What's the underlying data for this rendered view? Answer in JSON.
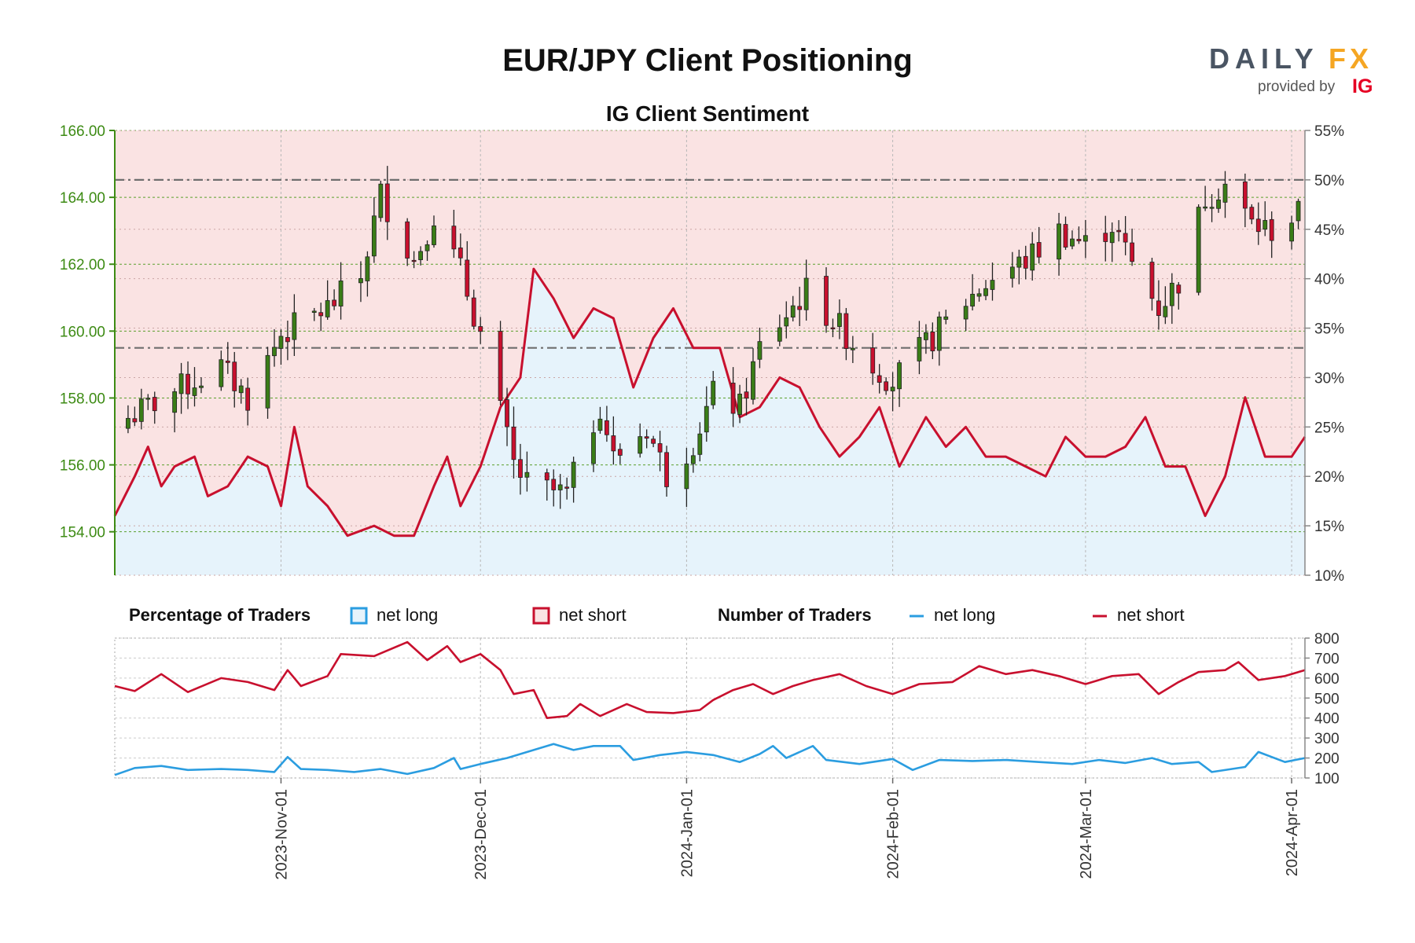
{
  "header": {
    "title": "EUR/JPY Client Positioning",
    "subtitle": "IG Client Sentiment"
  },
  "logo": {
    "brand_a": "DAILY",
    "brand_b": "FX",
    "provided_by": "provided by",
    "ig": "IG"
  },
  "legend": {
    "pct_title": "Percentage of Traders",
    "pct_long": "net long",
    "pct_short": "net short",
    "num_title": "Number of Traders",
    "num_long": "net long",
    "num_short": "net short"
  },
  "colors": {
    "long": "#2b9de0",
    "short": "#c8102e",
    "long_fill": "#e6f3fb",
    "short_fill": "#fae3e3",
    "bull": "#3a7d17",
    "bear": "#c8102e",
    "price_axis": "#3d8b14"
  },
  "chart_data": [
    {
      "type": "candlestick",
      "title": "EUR/JPY Client Positioning",
      "subtitle": "IG Client Sentiment",
      "x_ticks": [
        "2023-Nov-01",
        "2023-Dec-01",
        "2024-Jan-01",
        "2024-Feb-01",
        "2024-Mar-01",
        "2024-Apr-01"
      ],
      "x_range": [
        "2023-10-07",
        "2024-04-03"
      ],
      "y_left_ticks": [
        "154.00",
        "156.00",
        "158.00",
        "160.00",
        "162.00",
        "164.00",
        "166.00"
      ],
      "y_left_range": [
        152.7,
        166.0
      ],
      "y_right_ticks": [
        "10%",
        "15%",
        "20%",
        "25%",
        "30%",
        "35%",
        "40%",
        "45%",
        "50%",
        "55%"
      ],
      "y_right_range": [
        10,
        55
      ],
      "reference_lines_pct": [
        33,
        50
      ],
      "close_anchors": [
        [
          "2023-10-09",
          157.4
        ],
        [
          "2023-10-16",
          158.2
        ],
        [
          "2023-10-23",
          158.9
        ],
        [
          "2023-10-27",
          158.0
        ],
        [
          "2023-11-01",
          159.9
        ],
        [
          "2023-11-08",
          160.7
        ],
        [
          "2023-11-13",
          161.6
        ],
        [
          "2023-11-16",
          164.1
        ],
        [
          "2023-11-21",
          162.1
        ],
        [
          "2023-11-24",
          163.5
        ],
        [
          "2023-11-28",
          161.8
        ],
        [
          "2023-12-01",
          159.9
        ],
        [
          "2023-12-06",
          156.0
        ],
        [
          "2023-12-08",
          155.4
        ],
        [
          "2023-12-12",
          155.2
        ],
        [
          "2023-12-14",
          155.1
        ],
        [
          "2023-12-19",
          157.8
        ],
        [
          "2023-12-21",
          156.2
        ],
        [
          "2023-12-26",
          157.1
        ],
        [
          "2023-12-29",
          155.7
        ],
        [
          "2024-01-02",
          156.7
        ],
        [
          "2024-01-05",
          158.1
        ],
        [
          "2024-01-09",
          157.7
        ],
        [
          "2024-01-12",
          159.5
        ],
        [
          "2024-01-16",
          160.5
        ],
        [
          "2024-01-19",
          161.2
        ],
        [
          "2024-01-24",
          160.1
        ],
        [
          "2024-01-29",
          159.0
        ],
        [
          "2024-02-01",
          158.5
        ],
        [
          "2024-02-07",
          159.8
        ],
        [
          "2024-02-12",
          160.9
        ],
        [
          "2024-02-16",
          161.6
        ],
        [
          "2024-02-21",
          162.1
        ],
        [
          "2024-02-26",
          163.0
        ],
        [
          "2024-03-01",
          162.6
        ],
        [
          "2024-03-05",
          163.2
        ],
        [
          "2024-03-08",
          162.0
        ],
        [
          "2024-03-12",
          160.7
        ],
        [
          "2024-03-15",
          161.5
        ],
        [
          "2024-03-19",
          164.0
        ],
        [
          "2024-03-22",
          164.4
        ],
        [
          "2024-03-26",
          163.2
        ],
        [
          "2024-03-29",
          163.0
        ],
        [
          "2024-04-02",
          163.5
        ]
      ],
      "net_long_pct": [
        [
          "2023-10-07",
          16
        ],
        [
          "2023-10-10",
          20
        ],
        [
          "2023-10-12",
          23
        ],
        [
          "2023-10-14",
          19
        ],
        [
          "2023-10-16",
          21
        ],
        [
          "2023-10-19",
          22
        ],
        [
          "2023-10-21",
          18
        ],
        [
          "2023-10-24",
          19
        ],
        [
          "2023-10-27",
          22
        ],
        [
          "2023-10-30",
          21
        ],
        [
          "2023-11-01",
          17
        ],
        [
          "2023-11-03",
          25
        ],
        [
          "2023-11-05",
          19
        ],
        [
          "2023-11-08",
          17
        ],
        [
          "2023-11-11",
          14
        ],
        [
          "2023-11-15",
          15
        ],
        [
          "2023-11-18",
          14
        ],
        [
          "2023-11-21",
          14
        ],
        [
          "2023-11-24",
          19
        ],
        [
          "2023-11-26",
          22
        ],
        [
          "2023-11-28",
          17
        ],
        [
          "2023-12-01",
          21
        ],
        [
          "2023-12-04",
          27
        ],
        [
          "2023-12-07",
          30
        ],
        [
          "2023-12-09",
          41
        ],
        [
          "2023-12-12",
          38
        ],
        [
          "2023-12-15",
          34
        ],
        [
          "2023-12-18",
          37
        ],
        [
          "2023-12-21",
          36
        ],
        [
          "2023-12-24",
          29
        ],
        [
          "2023-12-27",
          34
        ],
        [
          "2023-12-30",
          37
        ],
        [
          "2024-01-02",
          33
        ],
        [
          "2024-01-06",
          33
        ],
        [
          "2024-01-09",
          26
        ],
        [
          "2024-01-12",
          27
        ],
        [
          "2024-01-15",
          30
        ],
        [
          "2024-01-18",
          29
        ],
        [
          "2024-01-21",
          25
        ],
        [
          "2024-01-24",
          22
        ],
        [
          "2024-01-27",
          24
        ],
        [
          "2024-01-30",
          27
        ],
        [
          "2024-02-02",
          21
        ],
        [
          "2024-02-06",
          26
        ],
        [
          "2024-02-09",
          23
        ],
        [
          "2024-02-12",
          25
        ],
        [
          "2024-02-15",
          22
        ],
        [
          "2024-02-18",
          22
        ],
        [
          "2024-02-21",
          21
        ],
        [
          "2024-02-24",
          20
        ],
        [
          "2024-02-27",
          24
        ],
        [
          "2024-03-01",
          22
        ],
        [
          "2024-03-04",
          22
        ],
        [
          "2024-03-07",
          23
        ],
        [
          "2024-03-10",
          26
        ],
        [
          "2024-03-13",
          21
        ],
        [
          "2024-03-16",
          21
        ],
        [
          "2024-03-19",
          16
        ],
        [
          "2024-03-22",
          20
        ],
        [
          "2024-03-25",
          28
        ],
        [
          "2024-03-28",
          22
        ],
        [
          "2024-04-01",
          22
        ],
        [
          "2024-04-03",
          24
        ]
      ]
    },
    {
      "type": "line",
      "legend_groups": [
        "Percentage of Traders",
        "Number of Traders"
      ],
      "y_ticks": [
        "100",
        "200",
        "300",
        "400",
        "500",
        "600",
        "700",
        "800"
      ],
      "y_range": [
        100,
        800
      ],
      "x_range": [
        "2023-10-07",
        "2024-04-03"
      ],
      "series": [
        {
          "name": "net short",
          "points": [
            [
              "2023-10-07",
              560
            ],
            [
              "2023-10-10",
              535
            ],
            [
              "2023-10-14",
              620
            ],
            [
              "2023-10-18",
              530
            ],
            [
              "2023-10-23",
              600
            ],
            [
              "2023-10-27",
              580
            ],
            [
              "2023-10-31",
              540
            ],
            [
              "2023-11-02",
              640
            ],
            [
              "2023-11-04",
              560
            ],
            [
              "2023-11-08",
              610
            ],
            [
              "2023-11-10",
              720
            ],
            [
              "2023-11-15",
              710
            ],
            [
              "2023-11-20",
              780
            ],
            [
              "2023-11-23",
              690
            ],
            [
              "2023-11-26",
              760
            ],
            [
              "2023-11-28",
              680
            ],
            [
              "2023-12-01",
              720
            ],
            [
              "2023-12-04",
              640
            ],
            [
              "2023-12-06",
              520
            ],
            [
              "2023-12-09",
              540
            ],
            [
              "2023-12-11",
              400
            ],
            [
              "2023-12-14",
              410
            ],
            [
              "2023-12-16",
              470
            ],
            [
              "2023-12-19",
              410
            ],
            [
              "2023-12-23",
              470
            ],
            [
              "2023-12-26",
              430
            ],
            [
              "2023-12-30",
              425
            ],
            [
              "2024-01-03",
              440
            ],
            [
              "2024-01-05",
              490
            ],
            [
              "2024-01-08",
              540
            ],
            [
              "2024-01-11",
              570
            ],
            [
              "2024-01-14",
              520
            ],
            [
              "2024-01-17",
              560
            ],
            [
              "2024-01-20",
              590
            ],
            [
              "2024-01-24",
              620
            ],
            [
              "2024-01-28",
              560
            ],
            [
              "2024-02-01",
              520
            ],
            [
              "2024-02-05",
              570
            ],
            [
              "2024-02-10",
              580
            ],
            [
              "2024-02-14",
              660
            ],
            [
              "2024-02-18",
              620
            ],
            [
              "2024-02-22",
              640
            ],
            [
              "2024-02-26",
              610
            ],
            [
              "2024-03-01",
              570
            ],
            [
              "2024-03-05",
              610
            ],
            [
              "2024-03-09",
              620
            ],
            [
              "2024-03-12",
              520
            ],
            [
              "2024-03-15",
              580
            ],
            [
              "2024-03-18",
              630
            ],
            [
              "2024-03-22",
              640
            ],
            [
              "2024-03-24",
              680
            ],
            [
              "2024-03-27",
              590
            ],
            [
              "2024-03-31",
              610
            ],
            [
              "2024-04-03",
              640
            ]
          ]
        },
        {
          "name": "net long",
          "points": [
            [
              "2023-10-07",
              115
            ],
            [
              "2023-10-10",
              150
            ],
            [
              "2023-10-14",
              160
            ],
            [
              "2023-10-18",
              140
            ],
            [
              "2023-10-23",
              145
            ],
            [
              "2023-10-27",
              140
            ],
            [
              "2023-10-31",
              130
            ],
            [
              "2023-11-02",
              205
            ],
            [
              "2023-11-04",
              145
            ],
            [
              "2023-11-08",
              140
            ],
            [
              "2023-11-12",
              130
            ],
            [
              "2023-11-16",
              145
            ],
            [
              "2023-11-20",
              120
            ],
            [
              "2023-11-24",
              150
            ],
            [
              "2023-11-27",
              200
            ],
            [
              "2023-11-28",
              145
            ],
            [
              "2023-12-01",
              170
            ],
            [
              "2023-12-05",
              200
            ],
            [
              "2023-12-09",
              240
            ],
            [
              "2023-12-12",
              270
            ],
            [
              "2023-12-15",
              240
            ],
            [
              "2023-12-18",
              260
            ],
            [
              "2023-12-22",
              260
            ],
            [
              "2023-12-24",
              190
            ],
            [
              "2023-12-28",
              215
            ],
            [
              "2024-01-01",
              230
            ],
            [
              "2024-01-05",
              215
            ],
            [
              "2024-01-09",
              180
            ],
            [
              "2024-01-12",
              220
            ],
            [
              "2024-01-14",
              260
            ],
            [
              "2024-01-16",
              200
            ],
            [
              "2024-01-20",
              260
            ],
            [
              "2024-01-22",
              190
            ],
            [
              "2024-01-27",
              170
            ],
            [
              "2024-02-01",
              195
            ],
            [
              "2024-02-04",
              140
            ],
            [
              "2024-02-08",
              190
            ],
            [
              "2024-02-13",
              185
            ],
            [
              "2024-02-18",
              190
            ],
            [
              "2024-02-23",
              180
            ],
            [
              "2024-02-28",
              170
            ],
            [
              "2024-03-03",
              190
            ],
            [
              "2024-03-07",
              175
            ],
            [
              "2024-03-11",
              200
            ],
            [
              "2024-03-14",
              170
            ],
            [
              "2024-03-18",
              180
            ],
            [
              "2024-03-20",
              130
            ],
            [
              "2024-03-25",
              155
            ],
            [
              "2024-03-27",
              230
            ],
            [
              "2024-03-31",
              180
            ],
            [
              "2024-04-03",
              200
            ]
          ]
        }
      ]
    }
  ]
}
